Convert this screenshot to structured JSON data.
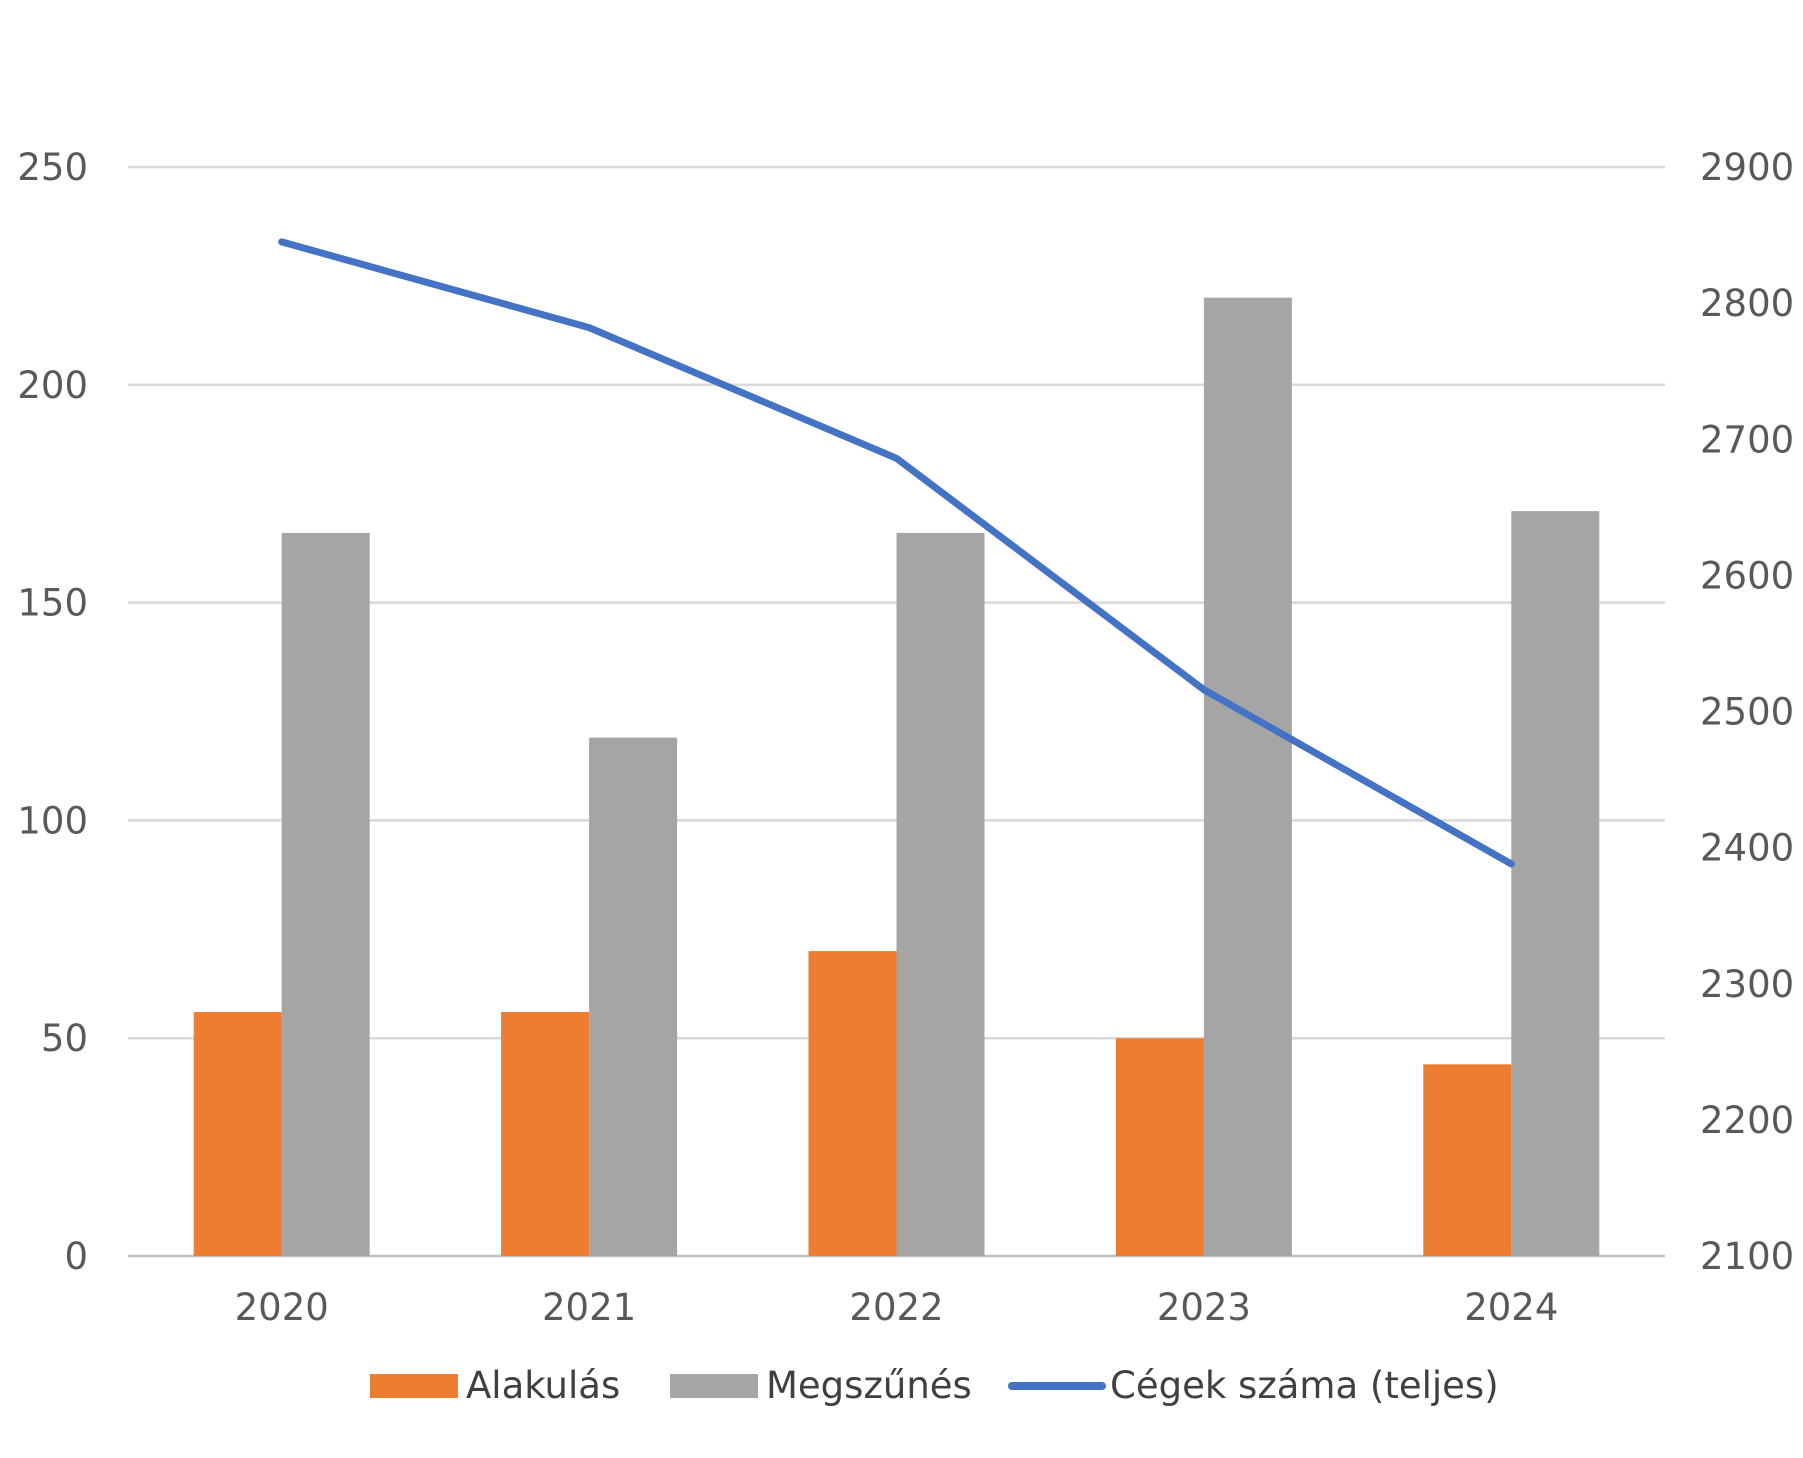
{
  "chart_data": {
    "type": "bar",
    "categories": [
      "2020",
      "2021",
      "2022",
      "2023",
      "2024"
    ],
    "series": [
      {
        "name": "Alakulás",
        "kind": "bar",
        "axis": "left",
        "color": "#ED7D31",
        "values": [
          56,
          56,
          70,
          50,
          44
        ]
      },
      {
        "name": "Megszűnés",
        "kind": "bar",
        "axis": "left",
        "color": "#A5A5A5",
        "values": [
          166,
          119,
          166,
          220,
          171
        ]
      },
      {
        "name": "Cégek száma (teljes)",
        "kind": "line",
        "axis": "right",
        "color": "#4472C4",
        "values": [
          2845,
          2782,
          2686,
          2516,
          2388
        ]
      }
    ],
    "ylim": [
      0,
      250
    ],
    "yticks": [
      "0",
      "50",
      "100",
      "150",
      "200",
      "250"
    ],
    "y2lim": [
      2100,
      2900
    ],
    "y2ticks": [
      "2100",
      "2200",
      "2300",
      "2400",
      "2500",
      "2600",
      "2700",
      "2800",
      "2900"
    ],
    "grid": true,
    "legend": "bottom",
    "title": "",
    "xlabel": "",
    "ylabel": ""
  }
}
